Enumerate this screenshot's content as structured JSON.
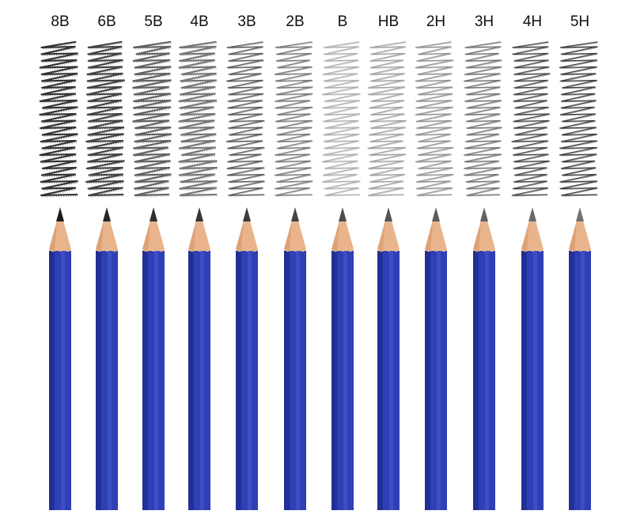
{
  "colors": {
    "background": "#ffffff",
    "pencil_body": "#2f3fb5",
    "pencil_body_shade": "#1f2c8e",
    "pencil_body_highlight": "#4a5ad0",
    "wood": "#e9b48c",
    "wood_shade": "#d89a70",
    "label_text": "#111111"
  },
  "pencils": [
    {
      "grade": "8B",
      "lead_color": "#1c1c1c",
      "scribble_color": "#2a2a2a",
      "scribble_texture": "grainy",
      "icon": "pencil-icon"
    },
    {
      "grade": "6B",
      "lead_color": "#262626",
      "scribble_color": "#3a3a3a",
      "scribble_texture": "grainy",
      "icon": "pencil-icon"
    },
    {
      "grade": "5B",
      "lead_color": "#2e2e2e",
      "scribble_color": "#5a5a5a",
      "scribble_texture": "grainy",
      "icon": "pencil-icon"
    },
    {
      "grade": "4B",
      "lead_color": "#353535",
      "scribble_color": "#707070",
      "scribble_texture": "grainy",
      "icon": "pencil-icon"
    },
    {
      "grade": "3B",
      "lead_color": "#3c3c3c",
      "scribble_color": "#4c4c4c",
      "scribble_texture": "smooth",
      "icon": "pencil-icon"
    },
    {
      "grade": "2B",
      "lead_color": "#444444",
      "scribble_color": "#6e6e6e",
      "scribble_texture": "smooth",
      "icon": "pencil-icon"
    },
    {
      "grade": "B",
      "lead_color": "#4c4c4c",
      "scribble_color": "#a8a8a8",
      "scribble_texture": "smooth",
      "icon": "pencil-icon"
    },
    {
      "grade": "HB",
      "lead_color": "#555555",
      "scribble_color": "#9a9a9a",
      "scribble_texture": "smooth",
      "icon": "pencil-icon"
    },
    {
      "grade": "2H",
      "lead_color": "#5c5c5c",
      "scribble_color": "#8a8a8a",
      "scribble_texture": "smooth",
      "icon": "pencil-icon"
    },
    {
      "grade": "3H",
      "lead_color": "#626262",
      "scribble_color": "#6a6a6a",
      "scribble_texture": "smooth",
      "icon": "pencil-icon"
    },
    {
      "grade": "4H",
      "lead_color": "#6a6a6a",
      "scribble_color": "#3a3a3a",
      "scribble_texture": "smooth",
      "icon": "pencil-icon"
    },
    {
      "grade": "5H",
      "lead_color": "#707070",
      "scribble_color": "#2e2e2e",
      "scribble_texture": "smooth",
      "icon": "pencil-icon"
    }
  ]
}
